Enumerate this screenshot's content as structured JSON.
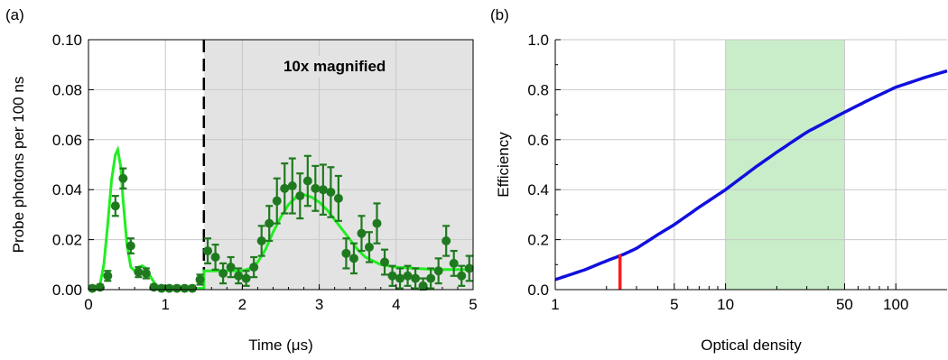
{
  "chart_data": [
    {
      "panel_label": "(a)",
      "type": "scatter",
      "xlabel": "Time (μs)",
      "ylabel": "Probe photons per 100 ns",
      "xlim": [
        0,
        5
      ],
      "ylim": [
        0,
        0.1
      ],
      "x_ticks": [
        0,
        1,
        2,
        3,
        4,
        5
      ],
      "y_ticks": [
        0.0,
        0.02,
        0.04,
        0.06,
        0.08,
        0.1
      ],
      "x_tick_labels": [
        "0",
        "1",
        "2",
        "3",
        "4",
        "5"
      ],
      "y_tick_labels": [
        "0.00",
        "0.02",
        "0.04",
        "0.06",
        "0.08",
        "0.10"
      ],
      "grid": true,
      "annotation": "10x magnified",
      "shaded_region": {
        "x_from": 1.5,
        "x_to": 5,
        "color": "#e3e3e3"
      },
      "divider_x": 1.5,
      "colors": {
        "data": "#1f7a1f",
        "fit": "#22ee22",
        "shade": "#e3e3e3"
      },
      "data_points": {
        "x": [
          0.05,
          0.15,
          0.25,
          0.35,
          0.45,
          0.55,
          0.65,
          0.75,
          0.85,
          0.95,
          1.05,
          1.15,
          1.25,
          1.35,
          1.45,
          1.55,
          1.65,
          1.75,
          1.85,
          1.95,
          2.05,
          2.15,
          2.25,
          2.35,
          2.45,
          2.55,
          2.65,
          2.75,
          2.85,
          2.95,
          3.05,
          3.15,
          3.25,
          3.35,
          3.45,
          3.55,
          3.65,
          3.75,
          3.85,
          3.95,
          4.05,
          4.15,
          4.25,
          4.35,
          4.45,
          4.55,
          4.65,
          4.75,
          4.85,
          4.95
        ],
        "y": [
          0.0005,
          0.001,
          0.0055,
          0.0335,
          0.0445,
          0.0175,
          0.007,
          0.0065,
          0.001,
          0.0005,
          0.0005,
          0.0005,
          0.0005,
          0.0005,
          0.004,
          0.0155,
          0.013,
          0.0065,
          0.009,
          0.0055,
          0.0045,
          0.009,
          0.0195,
          0.0265,
          0.0355,
          0.0405,
          0.0415,
          0.0375,
          0.0435,
          0.0405,
          0.04,
          0.039,
          0.0365,
          0.0145,
          0.0125,
          0.0225,
          0.017,
          0.0265,
          0.011,
          0.0055,
          0.0045,
          0.0055,
          0.0045,
          0.0015,
          0.0045,
          0.0075,
          0.0195,
          0.0105,
          0.0055,
          0.0085
        ],
        "err": [
          0.001,
          0.001,
          0.002,
          0.004,
          0.004,
          0.003,
          0.002,
          0.002,
          0.001,
          0.001,
          0.001,
          0.001,
          0.001,
          0.001,
          0.002,
          0.005,
          0.005,
          0.004,
          0.004,
          0.003,
          0.003,
          0.004,
          0.006,
          0.007,
          0.009,
          0.01,
          0.011,
          0.009,
          0.01,
          0.009,
          0.01,
          0.01,
          0.009,
          0.006,
          0.006,
          0.007,
          0.006,
          0.008,
          0.005,
          0.004,
          0.004,
          0.004,
          0.004,
          0.003,
          0.004,
          0.005,
          0.006,
          0.005,
          0.004,
          0.005
        ]
      },
      "fit_curve": {
        "x": [
          0,
          0.1,
          0.15,
          0.2,
          0.25,
          0.3,
          0.35,
          0.38,
          0.42,
          0.45,
          0.5,
          0.55,
          0.6,
          0.65,
          0.7,
          0.75,
          0.8,
          0.85,
          0.9,
          1.0,
          1.2,
          1.45,
          1.5,
          1.5,
          1.6,
          1.8,
          2.0,
          2.1,
          2.2,
          2.3,
          2.4,
          2.5,
          2.6,
          2.7,
          2.8,
          2.9,
          3.0,
          3.1,
          3.2,
          3.3,
          3.4,
          3.5,
          3.6,
          3.7,
          3.8,
          4.0,
          4.5,
          5.0
        ],
        "y": [
          0.0005,
          0.0005,
          0.002,
          0.01,
          0.026,
          0.044,
          0.054,
          0.056,
          0.049,
          0.036,
          0.018,
          0.009,
          0.0075,
          0.009,
          0.0095,
          0.0085,
          0.0055,
          0.003,
          0.001,
          0.0005,
          0.0005,
          0.0005,
          0.0005,
          0.0075,
          0.0075,
          0.0075,
          0.0075,
          0.0085,
          0.011,
          0.016,
          0.023,
          0.029,
          0.034,
          0.037,
          0.038,
          0.037,
          0.035,
          0.032,
          0.028,
          0.024,
          0.02,
          0.016,
          0.013,
          0.0115,
          0.01,
          0.009,
          0.008,
          0.008
        ]
      }
    },
    {
      "panel_label": "(b)",
      "type": "line",
      "xlabel": "Optical density",
      "ylabel": "Efficiency",
      "x_scale": "log",
      "xlim": [
        1,
        200
      ],
      "ylim": [
        0,
        1
      ],
      "x_ticks": [
        1,
        5,
        10,
        50,
        100
      ],
      "x_tick_labels": [
        "1",
        "5",
        "10",
        "50",
        "100"
      ],
      "y_ticks": [
        0.0,
        0.2,
        0.4,
        0.6,
        0.8,
        1.0
      ],
      "y_tick_labels": [
        "0.0",
        "0.2",
        "0.4",
        "0.6",
        "0.8",
        "1.0"
      ],
      "grid": true,
      "shaded_region": {
        "x_from": 10,
        "x_to": 50,
        "color": "#c9edc9"
      },
      "marker": {
        "x": 2.4,
        "y": 0.14,
        "color": "#ff1a1a"
      },
      "colors": {
        "curve": "#1010dd",
        "shade": "#c9edc9",
        "marker": "#ff1a1a"
      },
      "series": [
        {
          "x": [
            1,
            1.5,
            2,
            2.5,
            3,
            4,
            5,
            7,
            10,
            15,
            20,
            30,
            40,
            50,
            70,
            100,
            150,
            200
          ],
          "y": [
            0.04,
            0.08,
            0.115,
            0.14,
            0.165,
            0.22,
            0.26,
            0.33,
            0.4,
            0.49,
            0.55,
            0.63,
            0.675,
            0.71,
            0.76,
            0.81,
            0.85,
            0.875
          ]
        }
      ]
    }
  ]
}
